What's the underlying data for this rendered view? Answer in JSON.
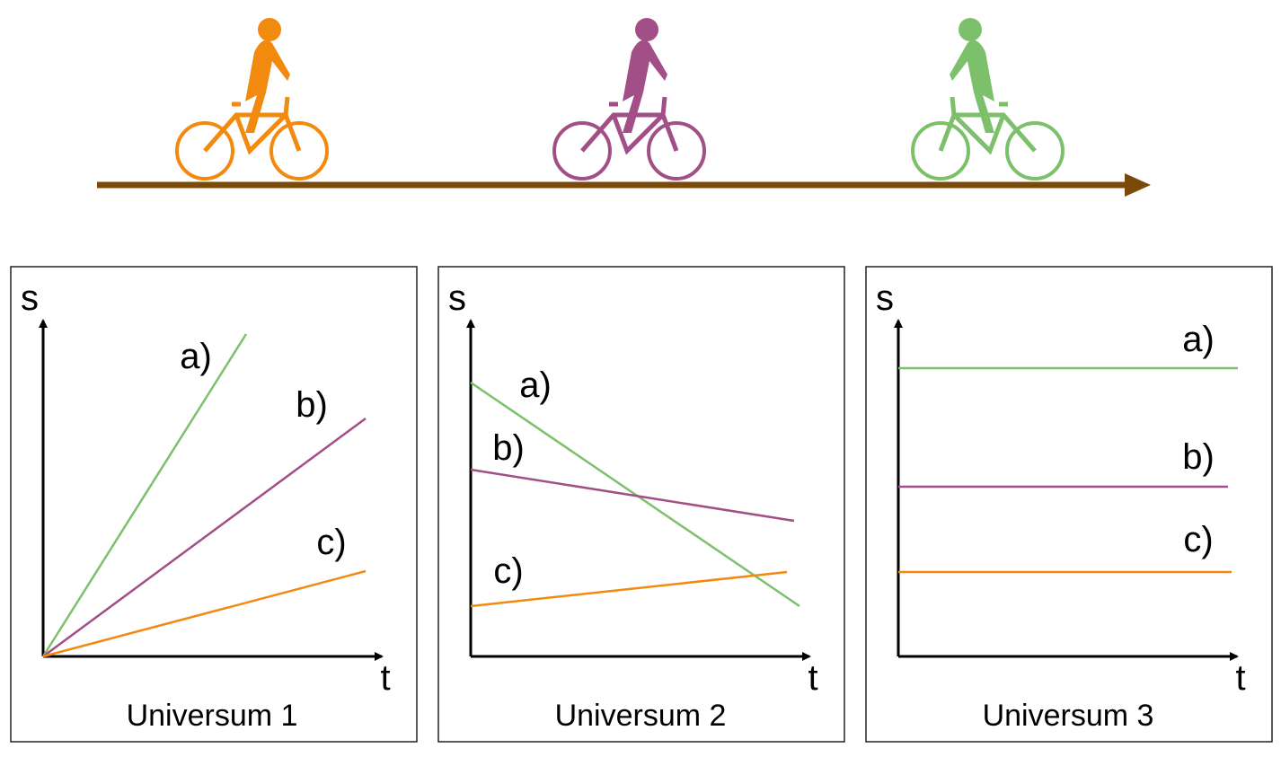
{
  "panels": [
    {
      "y_label": "s",
      "x_label": "t",
      "lines": [
        {
          "label": "a)"
        },
        {
          "label": "b)"
        },
        {
          "label": "c)"
        }
      ],
      "caption": "Universum 1"
    },
    {
      "y_label": "s",
      "x_label": "t",
      "lines": [
        {
          "label": "a)"
        },
        {
          "label": "b)"
        },
        {
          "label": "c)"
        }
      ],
      "caption": "Universum 2"
    },
    {
      "y_label": "s",
      "x_label": "t",
      "lines": [
        {
          "label": "a)"
        },
        {
          "label": "b)"
        },
        {
          "label": "c)"
        }
      ],
      "caption": "Universum 3"
    }
  ]
}
